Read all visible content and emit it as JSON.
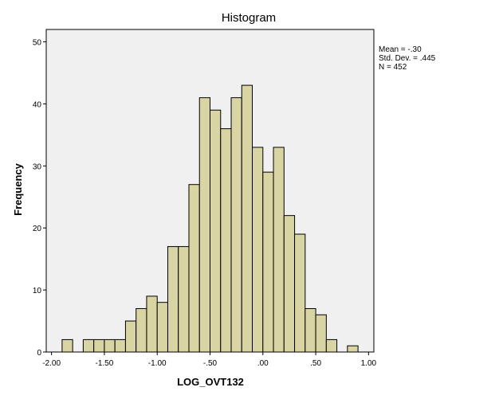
{
  "chart_data": {
    "type": "bar",
    "title": "Histogram",
    "xlabel": "LOG_OVT132",
    "ylabel": "Frequency",
    "xlim": [
      -2.05,
      1.05
    ],
    "ylim": [
      0,
      52
    ],
    "x_ticks": [
      "-2.00",
      "-1.50",
      "-1.00",
      "-.50",
      ".00",
      ".50",
      "1.00"
    ],
    "x_tick_values": [
      -2.0,
      -1.5,
      -1.0,
      -0.5,
      0.0,
      0.5,
      1.0
    ],
    "y_ticks": [
      "0",
      "10",
      "20",
      "30",
      "40",
      "50"
    ],
    "y_tick_values": [
      0,
      10,
      20,
      30,
      40,
      50
    ],
    "bin_width": 0.1,
    "bins": [
      {
        "start": -1.9,
        "count": 2
      },
      {
        "start": -1.8,
        "count": 0
      },
      {
        "start": -1.7,
        "count": 2
      },
      {
        "start": -1.6,
        "count": 2
      },
      {
        "start": -1.5,
        "count": 2
      },
      {
        "start": -1.4,
        "count": 2
      },
      {
        "start": -1.3,
        "count": 5
      },
      {
        "start": -1.2,
        "count": 7
      },
      {
        "start": -1.1,
        "count": 9
      },
      {
        "start": -1.0,
        "count": 8
      },
      {
        "start": -0.9,
        "count": 17
      },
      {
        "start": -0.8,
        "count": 17
      },
      {
        "start": -0.7,
        "count": 27
      },
      {
        "start": -0.6,
        "count": 41
      },
      {
        "start": -0.5,
        "count": 39
      },
      {
        "start": -0.4,
        "count": 36
      },
      {
        "start": -0.3,
        "count": 41
      },
      {
        "start": -0.2,
        "count": 43
      },
      {
        "start": -0.1,
        "count": 33
      },
      {
        "start": 0.0,
        "count": 29
      },
      {
        "start": 0.1,
        "count": 33
      },
      {
        "start": 0.2,
        "count": 22
      },
      {
        "start": 0.3,
        "count": 19
      },
      {
        "start": 0.4,
        "count": 7
      },
      {
        "start": 0.5,
        "count": 6
      },
      {
        "start": 0.6,
        "count": 2
      },
      {
        "start": 0.7,
        "count": 0
      },
      {
        "start": 0.8,
        "count": 1
      }
    ],
    "stats": {
      "mean": "Mean = -.30",
      "std_dev": "Std. Dev. = .445",
      "n": "N = 452"
    },
    "bar_color": "#d9d4a3",
    "bar_stroke": "#000000",
    "plot_background": "#f0f0f0"
  }
}
